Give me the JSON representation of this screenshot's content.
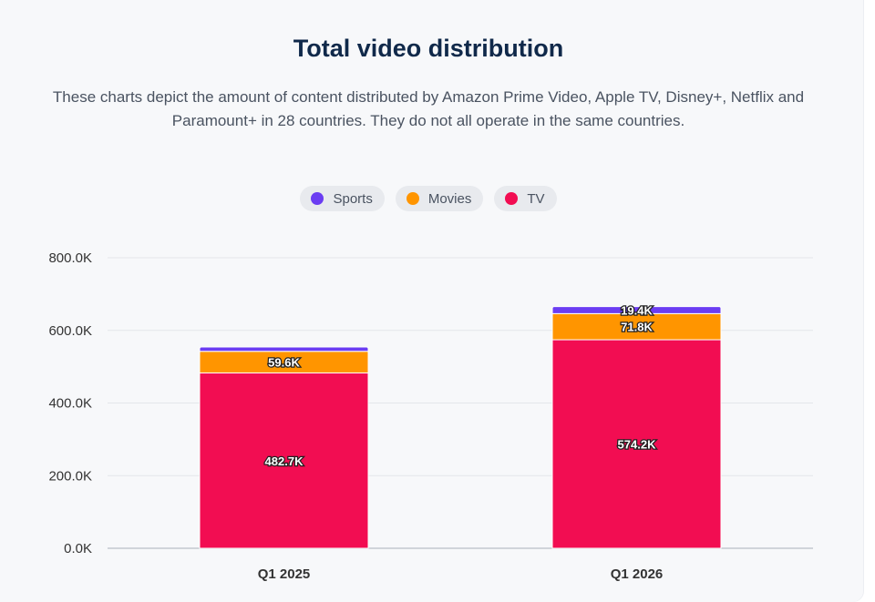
{
  "chart_data": {
    "type": "bar",
    "stacked": true,
    "title": "Total video distribution",
    "subtitle": "These charts depict the amount of content distributed by Amazon Prime Video, Apple TV, Disney+, Netflix and Paramount+ in 28 countries. They do not all operate in the same countries.",
    "categories": [
      "Q1 2025",
      "Q1 2026"
    ],
    "series": [
      {
        "name": "TV",
        "color": "#f20d52",
        "values": [
          482.7,
          574.2
        ],
        "labels": [
          "482.7K",
          "574.2K"
        ]
      },
      {
        "name": "Movies",
        "color": "#ff9500",
        "values": [
          59.6,
          71.8
        ],
        "labels": [
          "59.6K",
          "71.8K"
        ]
      },
      {
        "name": "Sports",
        "color": "#6b3df2",
        "values": [
          12.0,
          19.4
        ],
        "labels": [
          "",
          "19.4K"
        ]
      }
    ],
    "legend_order": [
      "Sports",
      "Movies",
      "TV"
    ],
    "legend_position": "top-center",
    "yticks": [
      "0.0K",
      "200.0K",
      "400.0K",
      "600.0K",
      "800.0K"
    ],
    "ylim": [
      0,
      800
    ],
    "grid": true
  }
}
